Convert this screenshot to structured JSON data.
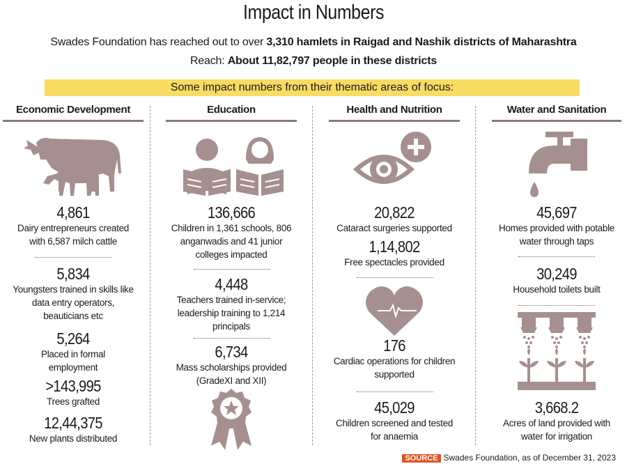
{
  "header": {
    "title": "Impact in Numbers",
    "line1_pre": "Swades Foundation has reached out to over ",
    "line1_bold": "3,310 hamlets in Raigad and Nashik districts of Maharashtra",
    "line2_pre": "Reach: ",
    "line2_bold": "About 11,82,797 people in these districts",
    "banner": "Some impact numbers from their thematic areas of focus:"
  },
  "columns": {
    "economic": {
      "heading": "Economic Development",
      "icon": "cow-calf-icon",
      "stats": [
        {
          "number": "4,861",
          "text": "Dairy entrepreneurs created with 6,587 milch cattle"
        },
        {
          "number": "5,834",
          "text": "Youngsters trained in skills like data entry operators, beauticians etc"
        },
        {
          "number": "5,264",
          "text": "Placed in formal employment"
        },
        {
          "number": ">143,995",
          "text": "Trees grafted"
        },
        {
          "number": "12,44,375",
          "text": "New plants distributed"
        }
      ]
    },
    "education": {
      "heading": "Education",
      "icons": [
        "reading-children-icon",
        "medal-icon"
      ],
      "stats": [
        {
          "number": "136,666",
          "text": "Children in 1,361 schools, 806 anganwadis and 41 junior colleges impacted"
        },
        {
          "number": "4,448",
          "text": "Teachers trained in-service; leadership training to 1,214 principals"
        },
        {
          "number": "6,734",
          "text": "Mass scholarships provided (GradeXI and XII)"
        }
      ]
    },
    "health": {
      "heading": "Health and Nutrition",
      "icons": [
        "eye-plus-icon",
        "heart-pulse-icon"
      ],
      "stats": [
        {
          "number": "20,822",
          "text": "Cataract surgeries supported"
        },
        {
          "number": "1,14,802",
          "text": "Free spectacles provided"
        },
        {
          "number": "176",
          "text": "Cardiac operations for children supported"
        },
        {
          "number": "45,029",
          "text": "Children screened and tested for anaemia"
        }
      ]
    },
    "water": {
      "heading": "Water and Sanitation",
      "icons": [
        "water-tap-icon",
        "irrigation-sprinkler-icon"
      ],
      "stats": [
        {
          "number": "45,697",
          "text": "Homes provided with potable water through taps"
        },
        {
          "number": "30,249",
          "text": "Household toilets built"
        },
        {
          "number": "3,668.2",
          "text": "Acres of land provided with water for irrigation"
        }
      ]
    }
  },
  "footer": {
    "source_tag": "SOURCE",
    "source_text": "Swades Foundation, as of December 31, 2023"
  },
  "colors": {
    "icon": "#a58f8f",
    "banner": "#f8dc63",
    "rule": "#8a7878",
    "source_tag": "#e2531f"
  }
}
